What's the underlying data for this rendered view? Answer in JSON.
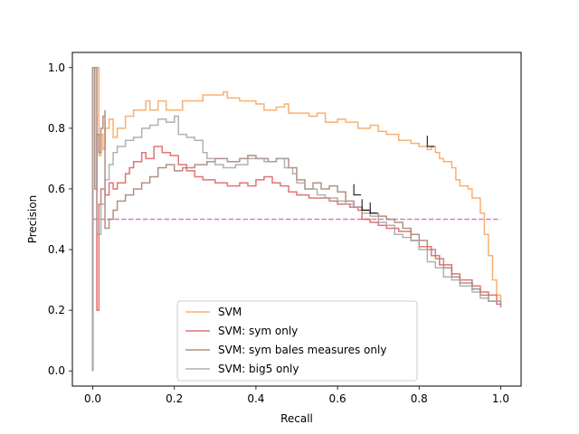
{
  "chart_data": {
    "type": "line",
    "title": "",
    "xlabel": "Recall",
    "ylabel": "Precision",
    "xlim": [
      -0.05,
      1.05
    ],
    "ylim": [
      -0.05,
      1.05
    ],
    "xticks": [
      0.0,
      0.2,
      0.4,
      0.6,
      0.8,
      1.0
    ],
    "xtick_labels": [
      "0.0",
      "0.2",
      "0.4",
      "0.6",
      "0.8",
      "1.0"
    ],
    "yticks": [
      0.0,
      0.2,
      0.4,
      0.6,
      0.8,
      1.0
    ],
    "ytick_labels": [
      "0.0",
      "0.2",
      "0.4",
      "0.6",
      "0.8",
      "1.0"
    ],
    "grid": false,
    "legend_position": "lower-center",
    "baseline": {
      "y": 0.5,
      "x_range": [
        0.0,
        1.0
      ],
      "color": "#d87cc8",
      "style": "dashed"
    },
    "series": [
      {
        "name": "SVM",
        "color": "#f7a258",
        "points": [
          [
            0.0,
            0.0
          ],
          [
            0.0,
            1.0
          ],
          [
            0.015,
            1.0
          ],
          [
            0.015,
            0.71
          ],
          [
            0.02,
            0.78
          ],
          [
            0.025,
            0.73
          ],
          [
            0.03,
            0.8
          ],
          [
            0.04,
            0.83
          ],
          [
            0.05,
            0.77
          ],
          [
            0.06,
            0.8
          ],
          [
            0.08,
            0.84
          ],
          [
            0.1,
            0.86
          ],
          [
            0.13,
            0.89
          ],
          [
            0.14,
            0.86
          ],
          [
            0.16,
            0.89
          ],
          [
            0.18,
            0.86
          ],
          [
            0.22,
            0.89
          ],
          [
            0.27,
            0.91
          ],
          [
            0.32,
            0.92
          ],
          [
            0.33,
            0.9
          ],
          [
            0.36,
            0.89
          ],
          [
            0.4,
            0.88
          ],
          [
            0.42,
            0.86
          ],
          [
            0.45,
            0.87
          ],
          [
            0.47,
            0.88
          ],
          [
            0.48,
            0.85
          ],
          [
            0.5,
            0.85
          ],
          [
            0.53,
            0.84
          ],
          [
            0.55,
            0.85
          ],
          [
            0.57,
            0.82
          ],
          [
            0.6,
            0.83
          ],
          [
            0.62,
            0.82
          ],
          [
            0.65,
            0.8
          ],
          [
            0.68,
            0.81
          ],
          [
            0.7,
            0.79
          ],
          [
            0.72,
            0.78
          ],
          [
            0.75,
            0.76
          ],
          [
            0.78,
            0.75
          ],
          [
            0.8,
            0.74
          ],
          [
            0.82,
            0.73
          ],
          [
            0.83,
            0.74
          ],
          [
            0.84,
            0.72
          ],
          [
            0.85,
            0.7
          ],
          [
            0.86,
            0.69
          ],
          [
            0.88,
            0.67
          ],
          [
            0.89,
            0.63
          ],
          [
            0.9,
            0.61
          ],
          [
            0.92,
            0.6
          ],
          [
            0.93,
            0.57
          ],
          [
            0.95,
            0.52
          ],
          [
            0.96,
            0.45
          ],
          [
            0.97,
            0.38
          ],
          [
            0.98,
            0.3
          ],
          [
            0.99,
            0.25
          ],
          [
            1.0,
            0.23
          ]
        ]
      },
      {
        "name": "SVM: sym only",
        "color": "#e05a5a",
        "points": [
          [
            0.0,
            0.0
          ],
          [
            0.0,
            1.0
          ],
          [
            0.01,
            0.2
          ],
          [
            0.015,
            0.55
          ],
          [
            0.02,
            0.6
          ],
          [
            0.03,
            0.58
          ],
          [
            0.04,
            0.62
          ],
          [
            0.05,
            0.6
          ],
          [
            0.06,
            0.62
          ],
          [
            0.08,
            0.65
          ],
          [
            0.09,
            0.67
          ],
          [
            0.1,
            0.69
          ],
          [
            0.12,
            0.72
          ],
          [
            0.13,
            0.7
          ],
          [
            0.15,
            0.74
          ],
          [
            0.17,
            0.72
          ],
          [
            0.19,
            0.71
          ],
          [
            0.21,
            0.68
          ],
          [
            0.23,
            0.66
          ],
          [
            0.25,
            0.64
          ],
          [
            0.27,
            0.63
          ],
          [
            0.3,
            0.62
          ],
          [
            0.33,
            0.61
          ],
          [
            0.36,
            0.62
          ],
          [
            0.38,
            0.61
          ],
          [
            0.4,
            0.63
          ],
          [
            0.42,
            0.64
          ],
          [
            0.44,
            0.62
          ],
          [
            0.46,
            0.61
          ],
          [
            0.48,
            0.59
          ],
          [
            0.5,
            0.58
          ],
          [
            0.53,
            0.57
          ],
          [
            0.56,
            0.57
          ],
          [
            0.58,
            0.56
          ],
          [
            0.6,
            0.55
          ],
          [
            0.63,
            0.54
          ],
          [
            0.65,
            0.53
          ],
          [
            0.66,
            0.5
          ],
          [
            0.68,
            0.49
          ],
          [
            0.7,
            0.48
          ],
          [
            0.72,
            0.47
          ],
          [
            0.75,
            0.46
          ],
          [
            0.78,
            0.43
          ],
          [
            0.8,
            0.41
          ],
          [
            0.83,
            0.38
          ],
          [
            0.85,
            0.35
          ],
          [
            0.88,
            0.32
          ],
          [
            0.9,
            0.3
          ],
          [
            0.93,
            0.28
          ],
          [
            0.95,
            0.26
          ],
          [
            0.97,
            0.25
          ],
          [
            0.99,
            0.22
          ],
          [
            1.0,
            0.21
          ]
        ]
      },
      {
        "name": "SVM: sym bales measures only",
        "color": "#a57c6e",
        "points": [
          [
            0.0,
            0.0
          ],
          [
            0.0,
            1.0
          ],
          [
            0.005,
            0.6
          ],
          [
            0.01,
            0.78
          ],
          [
            0.015,
            0.72
          ],
          [
            0.02,
            0.8
          ],
          [
            0.025,
            0.84
          ],
          [
            0.03,
            0.86
          ],
          [
            0.03,
            0.47
          ],
          [
            0.04,
            0.5
          ],
          [
            0.05,
            0.53
          ],
          [
            0.06,
            0.56
          ],
          [
            0.08,
            0.58
          ],
          [
            0.1,
            0.6
          ],
          [
            0.12,
            0.62
          ],
          [
            0.14,
            0.64
          ],
          [
            0.16,
            0.67
          ],
          [
            0.18,
            0.68
          ],
          [
            0.2,
            0.66
          ],
          [
            0.22,
            0.67
          ],
          [
            0.25,
            0.68
          ],
          [
            0.28,
            0.69
          ],
          [
            0.3,
            0.7
          ],
          [
            0.33,
            0.69
          ],
          [
            0.36,
            0.7
          ],
          [
            0.38,
            0.71
          ],
          [
            0.4,
            0.7
          ],
          [
            0.43,
            0.69
          ],
          [
            0.45,
            0.7
          ],
          [
            0.48,
            0.67
          ],
          [
            0.5,
            0.63
          ],
          [
            0.52,
            0.6
          ],
          [
            0.54,
            0.62
          ],
          [
            0.56,
            0.6
          ],
          [
            0.58,
            0.61
          ],
          [
            0.6,
            0.59
          ],
          [
            0.62,
            0.56
          ],
          [
            0.64,
            0.54
          ],
          [
            0.66,
            0.53
          ],
          [
            0.68,
            0.52
          ],
          [
            0.7,
            0.51
          ],
          [
            0.72,
            0.5
          ],
          [
            0.74,
            0.49
          ],
          [
            0.76,
            0.47
          ],
          [
            0.78,
            0.45
          ],
          [
            0.8,
            0.43
          ],
          [
            0.82,
            0.4
          ],
          [
            0.84,
            0.37
          ],
          [
            0.86,
            0.34
          ],
          [
            0.88,
            0.31
          ],
          [
            0.9,
            0.29
          ],
          [
            0.93,
            0.27
          ],
          [
            0.95,
            0.25
          ],
          [
            0.97,
            0.23
          ],
          [
            1.0,
            0.21
          ]
        ]
      },
      {
        "name": "SVM: big5 only",
        "color": "#a3a3a3",
        "points": [
          [
            0.0,
            0.0
          ],
          [
            0.0,
            1.0
          ],
          [
            0.01,
            0.45
          ],
          [
            0.02,
            0.55
          ],
          [
            0.03,
            0.63
          ],
          [
            0.04,
            0.68
          ],
          [
            0.05,
            0.72
          ],
          [
            0.06,
            0.74
          ],
          [
            0.08,
            0.76
          ],
          [
            0.1,
            0.77
          ],
          [
            0.12,
            0.8
          ],
          [
            0.14,
            0.81
          ],
          [
            0.16,
            0.83
          ],
          [
            0.18,
            0.82
          ],
          [
            0.2,
            0.84
          ],
          [
            0.21,
            0.78
          ],
          [
            0.23,
            0.77
          ],
          [
            0.25,
            0.76
          ],
          [
            0.27,
            0.72
          ],
          [
            0.28,
            0.7
          ],
          [
            0.3,
            0.68
          ],
          [
            0.32,
            0.67
          ],
          [
            0.35,
            0.68
          ],
          [
            0.38,
            0.7
          ],
          [
            0.4,
            0.7
          ],
          [
            0.42,
            0.69
          ],
          [
            0.45,
            0.7
          ],
          [
            0.47,
            0.67
          ],
          [
            0.49,
            0.65
          ],
          [
            0.5,
            0.62
          ],
          [
            0.52,
            0.6
          ],
          [
            0.55,
            0.58
          ],
          [
            0.57,
            0.57
          ],
          [
            0.6,
            0.56
          ],
          [
            0.62,
            0.55
          ],
          [
            0.64,
            0.54
          ],
          [
            0.66,
            0.52
          ],
          [
            0.68,
            0.51
          ],
          [
            0.7,
            0.49
          ],
          [
            0.72,
            0.48
          ],
          [
            0.74,
            0.45
          ],
          [
            0.76,
            0.44
          ],
          [
            0.78,
            0.43
          ],
          [
            0.8,
            0.4
          ],
          [
            0.82,
            0.36
          ],
          [
            0.84,
            0.34
          ],
          [
            0.86,
            0.31
          ],
          [
            0.88,
            0.3
          ],
          [
            0.9,
            0.28
          ],
          [
            0.93,
            0.26
          ],
          [
            0.95,
            0.24
          ],
          [
            0.97,
            0.23
          ],
          [
            1.0,
            0.21
          ]
        ]
      }
    ],
    "markers": [
      {
        "x": 0.82,
        "y": 0.74
      },
      {
        "x": 0.64,
        "y": 0.58
      },
      {
        "x": 0.66,
        "y": 0.53
      },
      {
        "x": 0.68,
        "y": 0.52
      }
    ]
  }
}
